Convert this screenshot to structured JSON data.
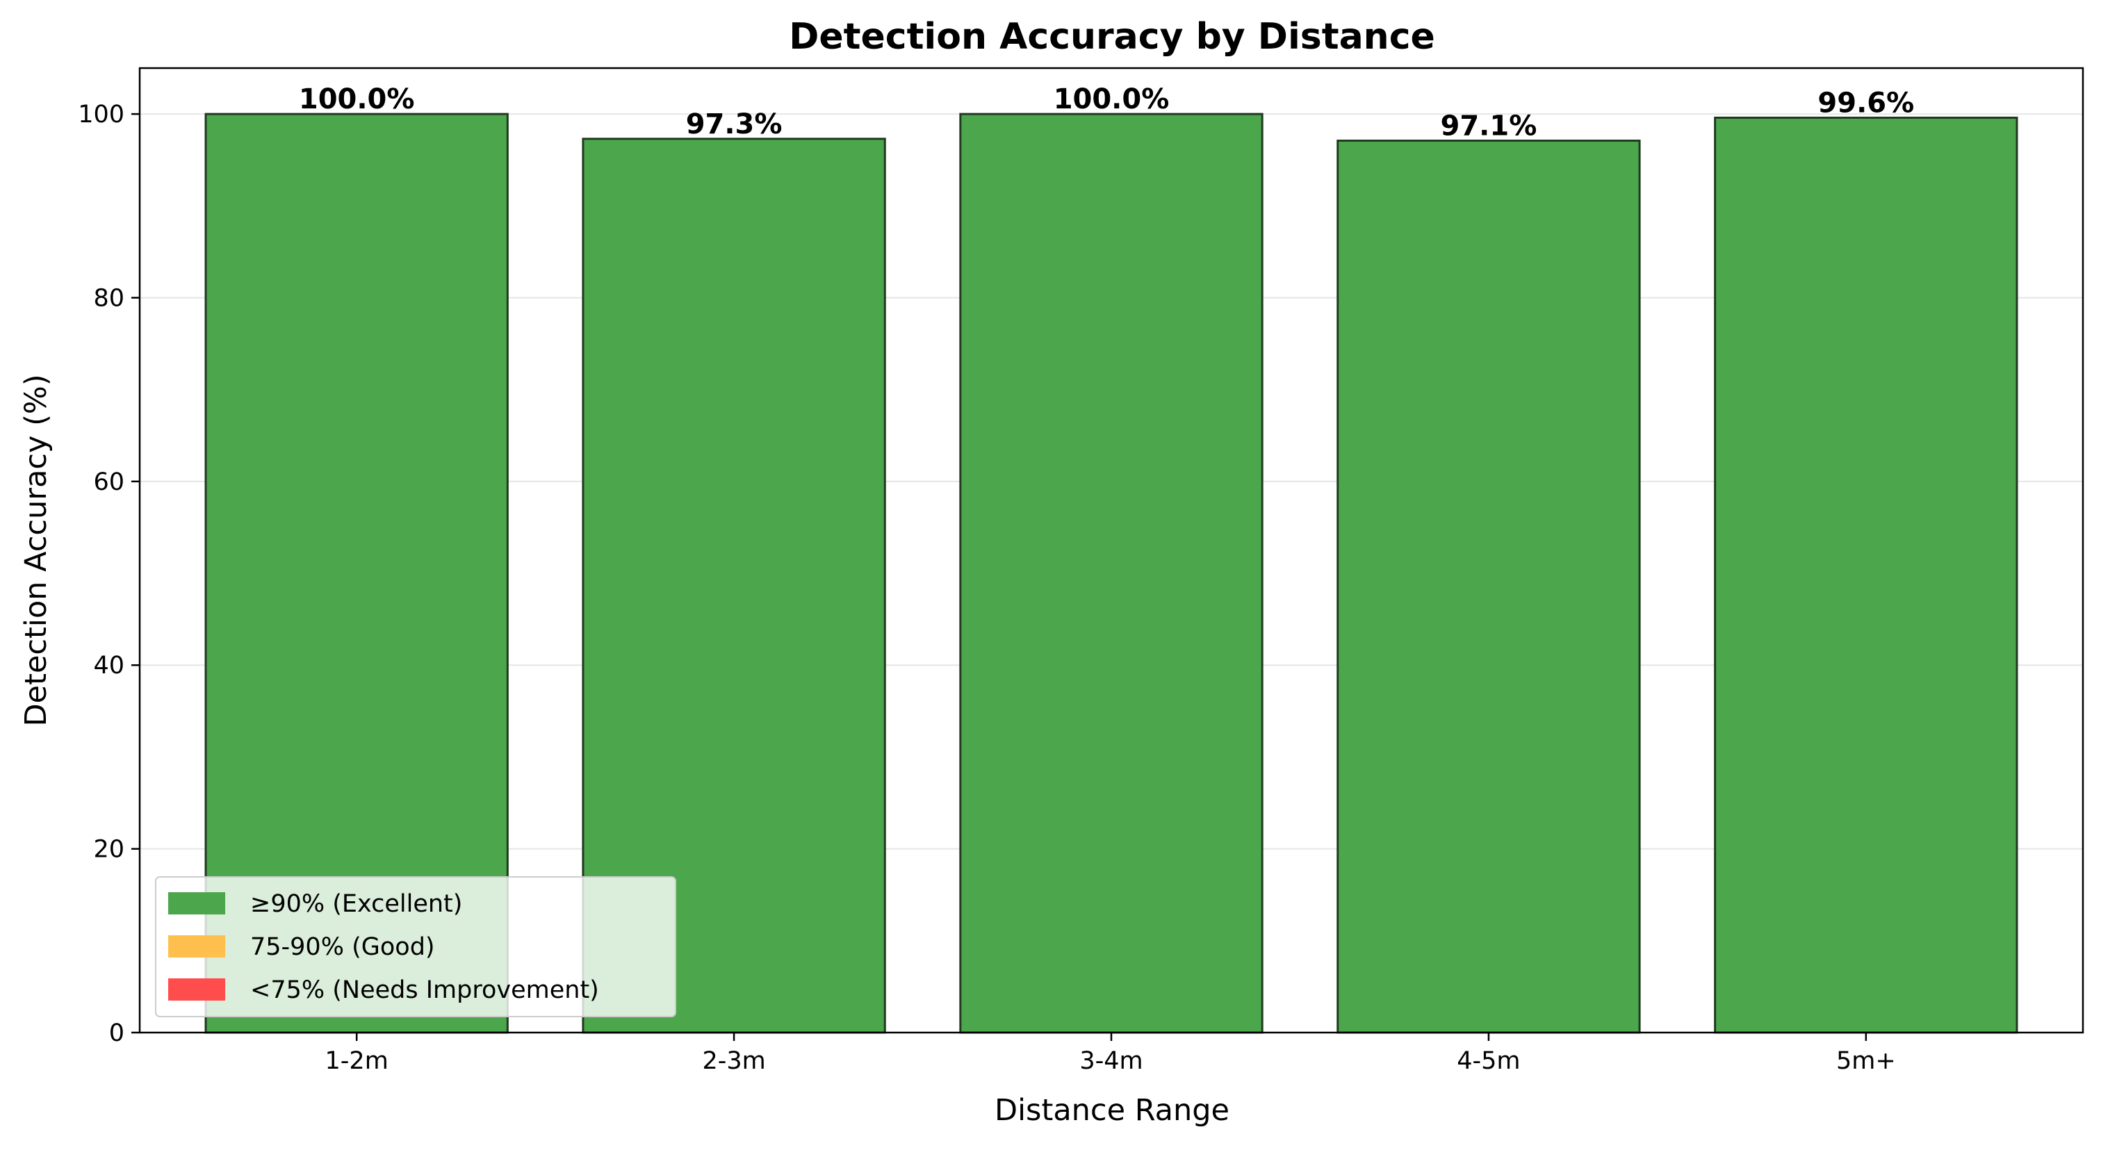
{
  "chart_data": {
    "type": "bar",
    "title": "Detection Accuracy by Distance",
    "xlabel": "Distance Range",
    "ylabel": "Detection Accuracy (%)",
    "categories": [
      "1-2m",
      "2-3m",
      "3-4m",
      "4-5m",
      "5m+"
    ],
    "values": [
      100.0,
      97.3,
      100.0,
      97.1,
      99.6
    ],
    "value_labels": [
      "100.0%",
      "97.3%",
      "100.0%",
      "97.1%",
      "99.6%"
    ],
    "bar_color": "#4ca64c",
    "bar_edge_color": "#1f3a1f",
    "ylim": [
      0,
      105
    ],
    "yticks": [
      0,
      20,
      40,
      60,
      80,
      100
    ],
    "ytick_labels": [
      "0",
      "20",
      "40",
      "60",
      "80",
      "100"
    ],
    "grid": "horizontal",
    "legend": {
      "placement": "lower-left",
      "entries": [
        {
          "label": "≥90% (Excellent)",
          "color": "#4ca64c"
        },
        {
          "label": "75-90% (Good)",
          "color": "#ffbf4c"
        },
        {
          "label": "<75% (Needs Improvement)",
          "color": "#ff4c4c"
        }
      ]
    }
  }
}
